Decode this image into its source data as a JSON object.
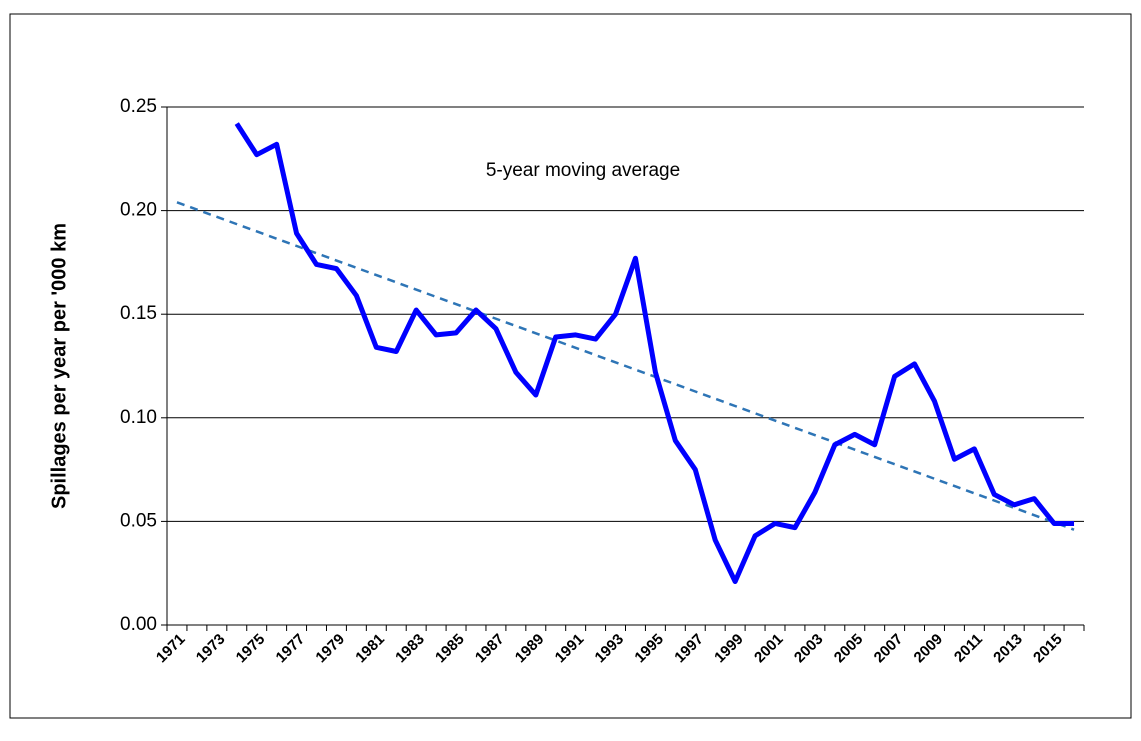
{
  "chart_data": {
    "type": "line",
    "y_label": "Spillages per year per '000 km",
    "annotation": "5-year moving average",
    "categories": [
      "1971",
      null,
      "1973",
      null,
      "1975",
      null,
      "1977",
      null,
      "1979",
      null,
      "1981",
      null,
      "1983",
      null,
      "1985",
      null,
      "1987",
      null,
      "1989",
      null,
      "1991",
      null,
      "1993",
      null,
      "1995",
      null,
      "1997",
      null,
      "1999",
      null,
      "2001",
      null,
      "2003",
      null,
      "2005",
      null,
      "2007",
      null,
      "2009",
      null,
      "2011",
      null,
      "2013",
      null,
      "2015",
      null
    ],
    "series": [
      {
        "color": "#0000ff",
        "values": [
          null,
          null,
          null,
          0.242,
          0.227,
          0.232,
          0.189,
          0.174,
          0.172,
          0.159,
          0.134,
          0.132,
          0.152,
          0.14,
          0.141,
          0.152,
          0.143,
          0.122,
          0.111,
          0.139,
          0.14,
          0.138,
          0.15,
          0.177,
          0.122,
          0.089,
          0.075,
          0.041,
          0.021,
          0.043,
          0.049,
          0.047,
          0.064,
          0.087,
          0.092,
          0.087,
          0.12,
          0.126,
          0.108,
          0.08,
          0.085,
          0.063,
          0.058,
          0.061,
          0.049,
          0.049
        ]
      }
    ],
    "trend": {
      "color": "#2e75b6",
      "values": [
        0.204,
        0.046
      ]
    },
    "ylim": [
      0,
      0.25
    ],
    "yticks": [
      {
        "value": 0,
        "label": "0.00"
      },
      {
        "value": 0.05,
        "label": "0.05"
      },
      {
        "value": 0.1,
        "label": "0.10"
      },
      {
        "value": 0.15,
        "label": "0.15"
      },
      {
        "value": 0.2,
        "label": "0.20"
      },
      {
        "value": 0.25,
        "label": "0.25"
      }
    ],
    "grid": true
  }
}
